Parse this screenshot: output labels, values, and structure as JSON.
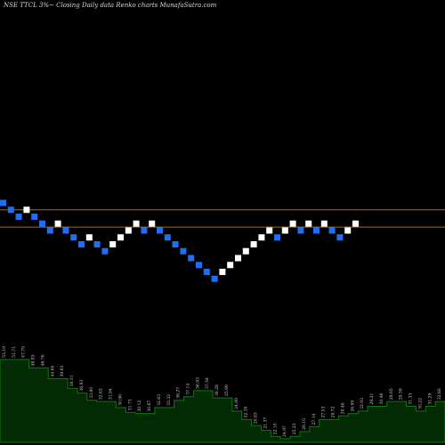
{
  "header": {
    "title": "NSE TTCL  3%~  Closing Daily data  Renko  charts MunafaSutra.com"
  },
  "chart_data": {
    "type": "renko",
    "colors": {
      "up": "#ffffff",
      "down": "#1e6ff5",
      "reference_line": "#a86a1c",
      "volume_fill": "#032b03",
      "volume_line": "#0b7a0b",
      "volume_label": "#cfcfcf"
    },
    "reference_lines": [
      {
        "value": 1.0
      },
      {
        "value": -1.5
      }
    ],
    "renko_bricks": [
      {
        "index": 0,
        "level": 2,
        "direction": "down"
      },
      {
        "index": 1,
        "level": 1,
        "direction": "down"
      },
      {
        "index": 2,
        "level": 0,
        "direction": "down"
      },
      {
        "index": 3,
        "level": 1,
        "direction": "up"
      },
      {
        "index": 4,
        "level": 0,
        "direction": "down"
      },
      {
        "index": 5,
        "level": -1,
        "direction": "down"
      },
      {
        "index": 6,
        "level": -2,
        "direction": "down"
      },
      {
        "index": 7,
        "level": -1,
        "direction": "up"
      },
      {
        "index": 8,
        "level": -2,
        "direction": "down"
      },
      {
        "index": 9,
        "level": -3,
        "direction": "down"
      },
      {
        "index": 10,
        "level": -4,
        "direction": "down"
      },
      {
        "index": 11,
        "level": -3,
        "direction": "up"
      },
      {
        "index": 12,
        "level": -4,
        "direction": "down"
      },
      {
        "index": 13,
        "level": -5,
        "direction": "down"
      },
      {
        "index": 14,
        "level": -4,
        "direction": "up"
      },
      {
        "index": 15,
        "level": -3,
        "direction": "up"
      },
      {
        "index": 16,
        "level": -2,
        "direction": "up"
      },
      {
        "index": 17,
        "level": -1,
        "direction": "up"
      },
      {
        "index": 18,
        "level": -2,
        "direction": "down"
      },
      {
        "index": 19,
        "level": -1,
        "direction": "up"
      },
      {
        "index": 20,
        "level": -2,
        "direction": "down"
      },
      {
        "index": 21,
        "level": -3,
        "direction": "down"
      },
      {
        "index": 22,
        "level": -4,
        "direction": "down"
      },
      {
        "index": 23,
        "level": -5,
        "direction": "down"
      },
      {
        "index": 24,
        "level": -6,
        "direction": "down"
      },
      {
        "index": 25,
        "level": -7,
        "direction": "down"
      },
      {
        "index": 26,
        "level": -8,
        "direction": "down"
      },
      {
        "index": 27,
        "level": -9,
        "direction": "down"
      },
      {
        "index": 28,
        "level": -8,
        "direction": "up"
      },
      {
        "index": 29,
        "level": -7,
        "direction": "up"
      },
      {
        "index": 30,
        "level": -6,
        "direction": "up"
      },
      {
        "index": 31,
        "level": -5,
        "direction": "up"
      },
      {
        "index": 32,
        "level": -4,
        "direction": "up"
      },
      {
        "index": 33,
        "level": -3,
        "direction": "up"
      },
      {
        "index": 34,
        "level": -2,
        "direction": "up"
      },
      {
        "index": 35,
        "level": -3,
        "direction": "down"
      },
      {
        "index": 36,
        "level": -2,
        "direction": "up"
      },
      {
        "index": 37,
        "level": -1,
        "direction": "up"
      },
      {
        "index": 38,
        "level": -2,
        "direction": "down"
      },
      {
        "index": 39,
        "level": -1,
        "direction": "up"
      },
      {
        "index": 40,
        "level": -2,
        "direction": "down"
      },
      {
        "index": 41,
        "level": -1,
        "direction": "up"
      },
      {
        "index": 42,
        "level": -2,
        "direction": "down"
      },
      {
        "index": 43,
        "level": -3,
        "direction": "down"
      },
      {
        "index": 44,
        "level": -2,
        "direction": "up"
      },
      {
        "index": 45,
        "level": -1,
        "direction": "up"
      }
    ],
    "volume_labels": [
      "53.19",
      "51.71",
      "47.79",
      "48.83",
      "46.76",
      "44.60",
      "39.63",
      "38.31",
      "36.93",
      "33.80",
      "32.62",
      "31.94",
      "30.96",
      "31.73",
      "30.12",
      "30.67",
      "32.63",
      "33.32",
      "36.27",
      "37.14",
      "36.93",
      "37.54",
      "36.28",
      "25.89",
      "24.89",
      "22.30",
      "20.83",
      "21.37",
      "22.10",
      "24.97",
      "25.23",
      "26.10",
      "27.14",
      "27.53",
      "29.72",
      "28.46",
      "26.99",
      "32.93",
      "29.21",
      "30.46",
      "28.65",
      "29.59",
      "31.33",
      "30.22",
      "31.29",
      "32.60"
    ],
    "volume_levels": [
      0.69,
      0.69,
      0.69,
      0.62,
      0.62,
      0.53,
      0.53,
      0.45,
      0.41,
      0.35,
      0.34,
      0.34,
      0.29,
      0.25,
      0.24,
      0.24,
      0.29,
      0.29,
      0.35,
      0.38,
      0.43,
      0.43,
      0.37,
      0.37,
      0.26,
      0.19,
      0.14,
      0.1,
      0.05,
      0.03,
      0.05,
      0.09,
      0.13,
      0.19,
      0.19,
      0.22,
      0.24,
      0.26,
      0.3,
      0.3,
      0.34,
      0.34,
      0.3,
      0.26,
      0.3,
      0.34
    ]
  }
}
